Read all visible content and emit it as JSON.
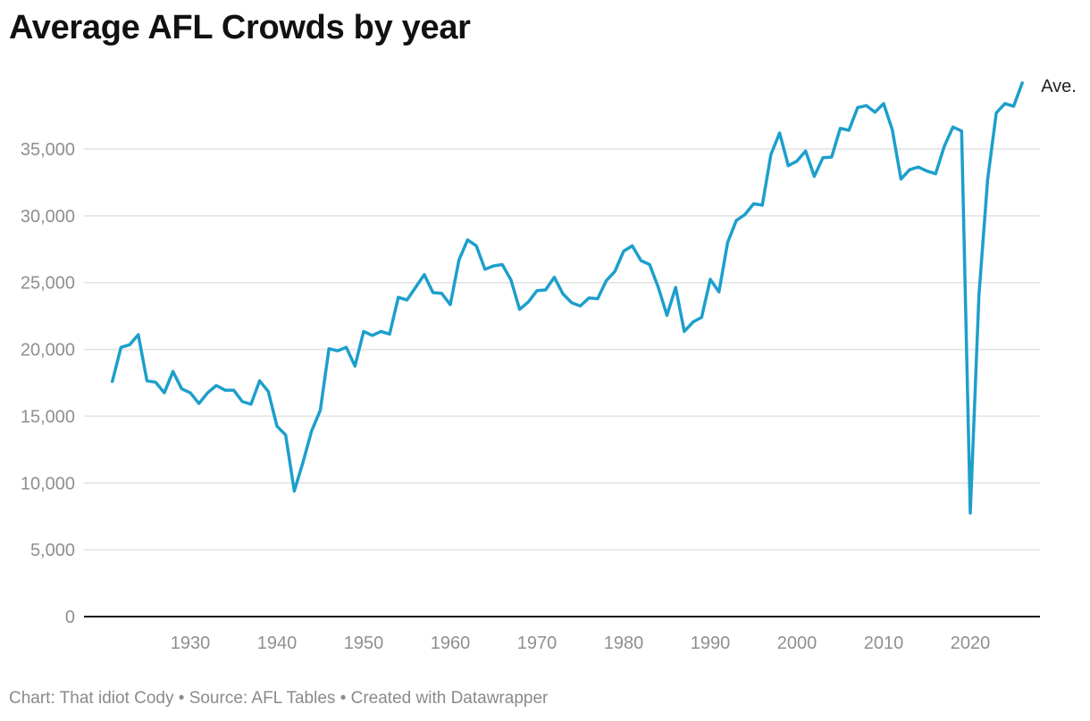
{
  "title": "Average AFL Crowds by year",
  "footer": {
    "chart_credit": "Chart: That idiot Cody",
    "separator": "•",
    "source": "Source: AFL Tables",
    "created_with": "Created with Datawrapper"
  },
  "colors": {
    "line": "#1d9fcb",
    "grid": "#e2e2e2",
    "axis": "#1a1a1a",
    "tick_text": "#8f8f8f"
  },
  "chart_data": {
    "type": "line",
    "title": "Average AFL Crowds by year",
    "xlabel": "",
    "ylabel": "",
    "xlim": [
      1921,
      2027
    ],
    "ylim": [
      0,
      40000
    ],
    "grid": true,
    "x_ticks": [
      1930,
      1940,
      1950,
      1960,
      1970,
      1980,
      1990,
      2000,
      2010,
      2020
    ],
    "x_tick_labels": [
      "1930",
      "1940",
      "1950",
      "1960",
      "1970",
      "1980",
      "1990",
      "2000",
      "2010",
      "2020"
    ],
    "y_ticks": [
      0,
      5000,
      10000,
      15000,
      20000,
      25000,
      30000,
      35000
    ],
    "y_tick_labels": [
      "0",
      "5,000",
      "10,000",
      "15,000",
      "20,000",
      "25,000",
      "30,000",
      "35,000"
    ],
    "series": [
      {
        "name": "Ave.",
        "x": [
          1921,
          1922,
          1923,
          1924,
          1925,
          1926,
          1927,
          1928,
          1929,
          1930,
          1931,
          1932,
          1933,
          1934,
          1935,
          1936,
          1937,
          1938,
          1939,
          1940,
          1941,
          1942,
          1943,
          1944,
          1945,
          1946,
          1947,
          1948,
          1949,
          1950,
          1951,
          1952,
          1953,
          1954,
          1955,
          1956,
          1957,
          1958,
          1959,
          1960,
          1961,
          1962,
          1963,
          1964,
          1965,
          1966,
          1967,
          1968,
          1969,
          1970,
          1971,
          1972,
          1973,
          1974,
          1975,
          1976,
          1977,
          1978,
          1979,
          1980,
          1981,
          1982,
          1983,
          1984,
          1985,
          1986,
          1987,
          1988,
          1989,
          1990,
          1991,
          1992,
          1993,
          1994,
          1995,
          1996,
          1997,
          1998,
          1999,
          2000,
          2001,
          2002,
          2003,
          2004,
          2005,
          2006,
          2007,
          2008,
          2009,
          2010,
          2011,
          2012,
          2013,
          2014,
          2015,
          2016,
          2017,
          2018,
          2019,
          2020,
          2021,
          2022,
          2023,
          2024,
          2025,
          2026
        ],
        "values": [
          17600,
          20150,
          20350,
          21100,
          17650,
          17550,
          16750,
          18350,
          17050,
          16750,
          15950,
          16750,
          17300,
          16950,
          16950,
          16100,
          15900,
          17650,
          16850,
          14250,
          13600,
          9400,
          11550,
          13900,
          15450,
          20050,
          19900,
          20150,
          18750,
          21350,
          21050,
          21350,
          21150,
          23900,
          23700,
          24650,
          25600,
          24250,
          24200,
          23350,
          26700,
          28200,
          27750,
          26000,
          26250,
          26350,
          25200,
          23000,
          23550,
          24400,
          24450,
          25400,
          24150,
          23500,
          23250,
          23850,
          23800,
          25150,
          25850,
          27350,
          27750,
          26650,
          26350,
          24650,
          22550,
          24650,
          21350,
          22050,
          22400,
          25250,
          24300,
          28000,
          29650,
          30100,
          30900,
          30800,
          34600,
          36200,
          33750,
          34100,
          34850,
          32950,
          34350,
          34400,
          36550,
          36400,
          38100,
          38250,
          37750,
          38400,
          36450,
          32750,
          33450,
          33650,
          33350,
          33150,
          35200,
          36650,
          36350,
          7750,
          24050,
          32700,
          37700,
          38400,
          38200,
          39950
        ]
      }
    ]
  }
}
